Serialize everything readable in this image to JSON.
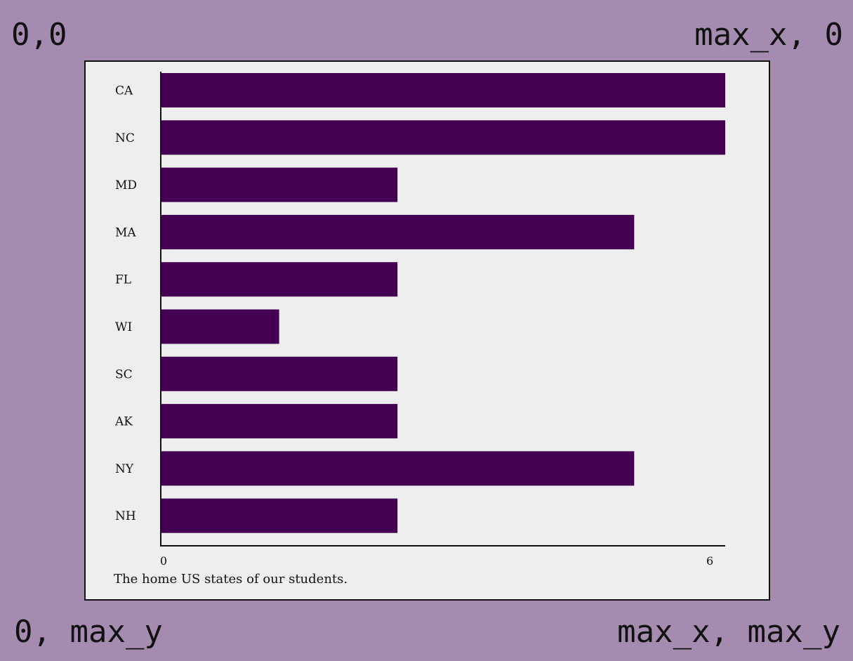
{
  "corners": {
    "top_left": "0,0",
    "top_right": "max_x, 0",
    "bottom_left": "0, max_y",
    "bottom_right": "max_x, max_y"
  },
  "colors": {
    "background": "#a58bb0",
    "panel": "#eeeeee",
    "bar": "#440154",
    "axis": "#111111"
  },
  "chart_data": {
    "type": "bar",
    "orientation": "horizontal",
    "categories": [
      "CA",
      "NC",
      "MD",
      "MA",
      "FL",
      "WI",
      "SC",
      "AK",
      "NY",
      "NH"
    ],
    "values": [
      6.2,
      6.2,
      2.6,
      5.2,
      2.6,
      1.3,
      2.6,
      2.6,
      5.2,
      2.6
    ],
    "xticks": [
      "0",
      "6"
    ],
    "xlim": [
      0,
      6.2
    ],
    "caption": "The home US states of our students.",
    "grid": false,
    "legend": "none"
  }
}
